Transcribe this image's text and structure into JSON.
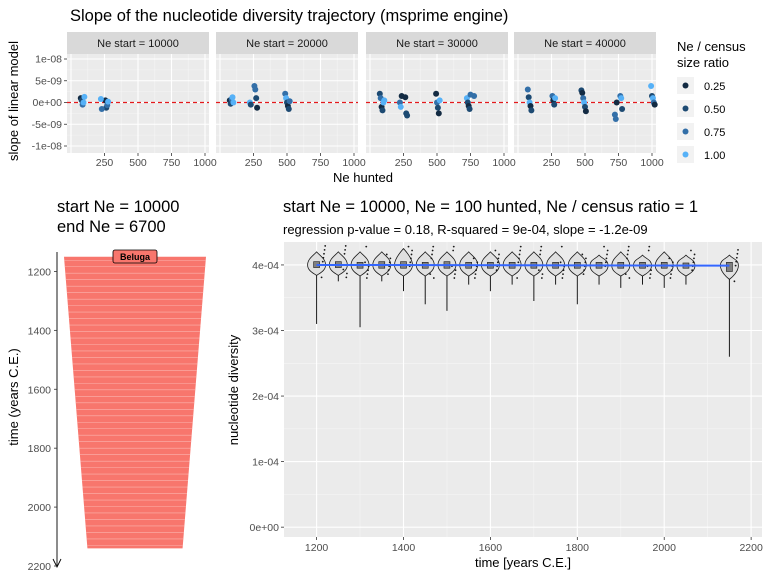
{
  "chart_data": [
    {
      "type": "scatter",
      "title": "Slope of the nucleotide diversity trajectory (msprime engine)",
      "xlabel": "Ne hunted",
      "ylabel": "slope of linear model",
      "xlim": [
        0,
        1000
      ],
      "ylim": [
        -1e-08,
        1e-08
      ],
      "x_ticks": [
        250,
        500,
        750,
        1000
      ],
      "x_tick_labels": [
        "250",
        "500",
        "750",
        "1000"
      ],
      "y_ticks": [
        -1e-08,
        -5e-09,
        0,
        5e-09,
        1e-08
      ],
      "y_tick_labels": [
        "-1e-08",
        "-5e-09",
        "0e+00",
        "5e-09",
        "1e-08"
      ],
      "reference_line": {
        "y": 0,
        "style": "dashed",
        "color": "#e41a1c"
      },
      "facets": [
        "Ne start = 10000",
        "Ne start = 20000",
        "Ne start = 30000",
        "Ne start = 40000"
      ],
      "legend": {
        "title": [
          "Ne / census",
          "size ratio"
        ],
        "placement": "right",
        "entries": [
          {
            "label": "0.25",
            "color": "#132b43"
          },
          {
            "label": "0.50",
            "color": "#1d4a72"
          },
          {
            "label": "0.75",
            "color": "#336fa8"
          },
          {
            "label": "1.00",
            "color": "#56b1f7"
          }
        ]
      },
      "panels": [
        {
          "facet": "Ne start = 10000",
          "points": [
            {
              "x": 100,
              "y": 1e-09,
              "r": 0.25
            },
            {
              "x": 100,
              "y": 5e-10,
              "r": 0.5
            },
            {
              "x": 100,
              "y": -5e-10,
              "r": 0.75
            },
            {
              "x": 100,
              "y": 0,
              "r": 1.0
            },
            {
              "x": 100,
              "y": 1.3e-09,
              "r": 1.0
            },
            {
              "x": 250,
              "y": 5e-10,
              "r": 0.25
            },
            {
              "x": 250,
              "y": -1.2e-09,
              "r": 0.5
            },
            {
              "x": 250,
              "y": -6e-10,
              "r": 0.75
            },
            {
              "x": 250,
              "y": 2e-10,
              "r": 1.0
            },
            {
              "x": 250,
              "y": 8e-10,
              "r": 1.0
            },
            {
              "x": 250,
              "y": -1.5e-09,
              "r": 0.75
            }
          ]
        },
        {
          "facet": "Ne start = 20000",
          "points": [
            {
              "x": 100,
              "y": 5e-10,
              "r": 0.25
            },
            {
              "x": 100,
              "y": -3e-10,
              "r": 0.5
            },
            {
              "x": 100,
              "y": 8e-10,
              "r": 0.75
            },
            {
              "x": 100,
              "y": 1.2e-09,
              "r": 1.0
            },
            {
              "x": 100,
              "y": 0,
              "r": 1.0
            },
            {
              "x": 250,
              "y": 3.8e-09,
              "r": 0.75
            },
            {
              "x": 250,
              "y": 3e-09,
              "r": 0.75
            },
            {
              "x": 250,
              "y": 1e-09,
              "r": 0.5
            },
            {
              "x": 250,
              "y": -1.2e-09,
              "r": 0.25
            },
            {
              "x": 250,
              "y": 0,
              "r": 1.0
            },
            {
              "x": 250,
              "y": -5e-10,
              "r": 0.5
            },
            {
              "x": 500,
              "y": 2e-09,
              "r": 0.75
            },
            {
              "x": 500,
              "y": 1e-09,
              "r": 1.0
            },
            {
              "x": 500,
              "y": 0,
              "r": 0.5
            },
            {
              "x": 500,
              "y": -8e-10,
              "r": 0.25
            },
            {
              "x": 500,
              "y": -1.5e-09,
              "r": 0.5
            },
            {
              "x": 500,
              "y": 3e-10,
              "r": 0.75
            }
          ]
        },
        {
          "facet": "Ne start = 30000",
          "points": [
            {
              "x": 100,
              "y": 2e-09,
              "r": 0.5
            },
            {
              "x": 100,
              "y": 1e-09,
              "r": 0.75
            },
            {
              "x": 100,
              "y": -1e-09,
              "r": 0.25
            },
            {
              "x": 100,
              "y": -1.8e-09,
              "r": 0.5
            },
            {
              "x": 100,
              "y": 0,
              "r": 1.0
            },
            {
              "x": 100,
              "y": 5e-10,
              "r": 1.0
            },
            {
              "x": 250,
              "y": 1.2e-09,
              "r": 0.25
            },
            {
              "x": 250,
              "y": -2.5e-09,
              "r": 0.5
            },
            {
              "x": 250,
              "y": -3e-09,
              "r": 0.5
            },
            {
              "x": 250,
              "y": 0,
              "r": 0.75
            },
            {
              "x": 250,
              "y": -1e-09,
              "r": 1.0
            },
            {
              "x": 250,
              "y": 1.5e-09,
              "r": 0.25
            },
            {
              "x": 500,
              "y": 2e-09,
              "r": 0.25
            },
            {
              "x": 500,
              "y": 0,
              "r": 0.75
            },
            {
              "x": 500,
              "y": -1.2e-09,
              "r": 0.5
            },
            {
              "x": 500,
              "y": -2.5e-09,
              "r": 0.25
            },
            {
              "x": 500,
              "y": 5e-10,
              "r": 1.0
            },
            {
              "x": 750,
              "y": 1.5e-09,
              "r": 0.75
            },
            {
              "x": 750,
              "y": 1e-09,
              "r": 1.0
            },
            {
              "x": 750,
              "y": 0,
              "r": 0.5
            },
            {
              "x": 750,
              "y": -8e-10,
              "r": 0.25
            },
            {
              "x": 750,
              "y": -1.5e-09,
              "r": 0.5
            },
            {
              "x": 750,
              "y": 1.8e-09,
              "r": 0.75
            }
          ]
        },
        {
          "facet": "Ne start = 40000",
          "points": [
            {
              "x": 100,
              "y": 3e-09,
              "r": 0.75
            },
            {
              "x": 100,
              "y": 1.2e-09,
              "r": 0.5
            },
            {
              "x": 100,
              "y": 0,
              "r": 1.0
            },
            {
              "x": 100,
              "y": -8e-10,
              "r": 0.25
            },
            {
              "x": 100,
              "y": -1.8e-09,
              "r": 0.5
            },
            {
              "x": 250,
              "y": 1.5e-09,
              "r": 0.75
            },
            {
              "x": 250,
              "y": 5e-10,
              "r": 0.25
            },
            {
              "x": 250,
              "y": -5e-10,
              "r": 0.5
            },
            {
              "x": 250,
              "y": 1e-09,
              "r": 1.0
            },
            {
              "x": 500,
              "y": 2.8e-09,
              "r": 0.5
            },
            {
              "x": 500,
              "y": 2.2e-09,
              "r": 0.25
            },
            {
              "x": 500,
              "y": 1e-09,
              "r": 0.75
            },
            {
              "x": 500,
              "y": 0,
              "r": 1.0
            },
            {
              "x": 500,
              "y": -1e-09,
              "r": 0.5
            },
            {
              "x": 500,
              "y": -2e-09,
              "r": 0.25
            },
            {
              "x": 750,
              "y": 1.5e-09,
              "r": 0.75
            },
            {
              "x": 750,
              "y": 1e-09,
              "r": 1.0
            },
            {
              "x": 750,
              "y": -1.5e-09,
              "r": 0.5
            },
            {
              "x": 750,
              "y": -2.8e-09,
              "r": 0.75
            },
            {
              "x": 750,
              "y": -3.8e-09,
              "r": 0.75
            },
            {
              "x": 750,
              "y": 0,
              "r": 0.25
            },
            {
              "x": 1000,
              "y": 3.8e-09,
              "r": 1.0
            },
            {
              "x": 1000,
              "y": 1.5e-09,
              "r": 0.5
            },
            {
              "x": 1000,
              "y": 1e-09,
              "r": 1.0
            },
            {
              "x": 1000,
              "y": 0,
              "r": 0.75
            },
            {
              "x": 1000,
              "y": -5e-10,
              "r": 0.25
            }
          ]
        }
      ]
    },
    {
      "type": "area",
      "title_lines": [
        "start Ne = 10000",
        "end Ne = 6700"
      ],
      "ylabel": "time (years C.E.)",
      "ylim": [
        1100,
        2200
      ],
      "y_axis_reversed": true,
      "y_ticks": [
        1200,
        1400,
        1600,
        1800,
        2000,
        2200
      ],
      "y_tick_labels": [
        "1200",
        "1400",
        "1600",
        "1800",
        "2000",
        "2200"
      ],
      "population": {
        "name": "Beluga",
        "color": "#f8766d",
        "time_start": 1150,
        "time_end": 2140,
        "ne_start": 10000,
        "ne_end": 6700
      }
    },
    {
      "type": "violin",
      "title": "start Ne = 10000, Ne = 100 hunted, Ne / census ratio = 1",
      "subtitle": "regression p-value = 0.18, R-squared = 9e-04, slope = -1.2e-09",
      "xlabel": "time [years C.E.]",
      "ylabel": "nucleotide diversity",
      "xlim": [
        1125,
        2225
      ],
      "ylim": [
        -1.5e-05,
        0.000435
      ],
      "x_ticks": [
        1200,
        1400,
        1600,
        1800,
        2000,
        2200
      ],
      "x_tick_labels": [
        "1200",
        "1400",
        "1600",
        "1800",
        "2000",
        "2200"
      ],
      "y_ticks": [
        0,
        0.0001,
        0.0002,
        0.0003,
        0.0004
      ],
      "y_tick_labels": [
        "0e+00",
        "1e-04",
        "2e-04",
        "3e-04",
        "4e-04"
      ],
      "regression_line": {
        "x": [
          1200,
          2150
        ],
        "y": [
          0.0004,
          0.000399
        ],
        "color": "#3366ff"
      },
      "groups": [
        {
          "x": 1200,
          "median": 0.0004,
          "q1": 0.000396,
          "q3": 0.000405,
          "min": 0.00031,
          "max": 0.00042
        },
        {
          "x": 1250,
          "median": 0.0004,
          "q1": 0.000396,
          "q3": 0.000405,
          "min": 0.000375,
          "max": 0.00042
        },
        {
          "x": 1300,
          "median": 0.0004,
          "q1": 0.000395,
          "q3": 0.000404,
          "min": 0.000305,
          "max": 0.00042
        },
        {
          "x": 1350,
          "median": 0.0004,
          "q1": 0.000395,
          "q3": 0.000405,
          "min": 0.000375,
          "max": 0.00042
        },
        {
          "x": 1400,
          "median": 0.0004,
          "q1": 0.000395,
          "q3": 0.000405,
          "min": 0.00036,
          "max": 0.000425
        },
        {
          "x": 1450,
          "median": 0.0004,
          "q1": 0.000395,
          "q3": 0.000404,
          "min": 0.00034,
          "max": 0.00042
        },
        {
          "x": 1500,
          "median": 0.0004,
          "q1": 0.000395,
          "q3": 0.000405,
          "min": 0.00033,
          "max": 0.00042
        },
        {
          "x": 1550,
          "median": 0.0004,
          "q1": 0.000395,
          "q3": 0.000404,
          "min": 0.00037,
          "max": 0.00042
        },
        {
          "x": 1600,
          "median": 0.0004,
          "q1": 0.000395,
          "q3": 0.000404,
          "min": 0.00036,
          "max": 0.00042
        },
        {
          "x": 1650,
          "median": 0.0004,
          "q1": 0.000395,
          "q3": 0.000404,
          "min": 0.00037,
          "max": 0.00042
        },
        {
          "x": 1700,
          "median": 0.0004,
          "q1": 0.000395,
          "q3": 0.000404,
          "min": 0.000345,
          "max": 0.00042
        },
        {
          "x": 1750,
          "median": 0.0004,
          "q1": 0.000395,
          "q3": 0.000404,
          "min": 0.00037,
          "max": 0.00042
        },
        {
          "x": 1800,
          "median": 0.0004,
          "q1": 0.000395,
          "q3": 0.000404,
          "min": 0.00034,
          "max": 0.00042
        },
        {
          "x": 1850,
          "median": 0.000399,
          "q1": 0.000395,
          "q3": 0.000404,
          "min": 0.00037,
          "max": 0.000415
        },
        {
          "x": 1900,
          "median": 0.000399,
          "q1": 0.000395,
          "q3": 0.000404,
          "min": 0.000365,
          "max": 0.00042
        },
        {
          "x": 1950,
          "median": 0.000399,
          "q1": 0.000395,
          "q3": 0.000404,
          "min": 0.00037,
          "max": 0.000415
        },
        {
          "x": 2000,
          "median": 0.000399,
          "q1": 0.000395,
          "q3": 0.000404,
          "min": 0.000365,
          "max": 0.00042
        },
        {
          "x": 2050,
          "median": 0.000399,
          "q1": 0.000395,
          "q3": 0.000403,
          "min": 0.00037,
          "max": 0.000415
        },
        {
          "x": 2150,
          "median": 0.000399,
          "q1": 0.00039,
          "q3": 0.000404,
          "min": 0.00026,
          "max": 0.000415
        }
      ]
    }
  ]
}
